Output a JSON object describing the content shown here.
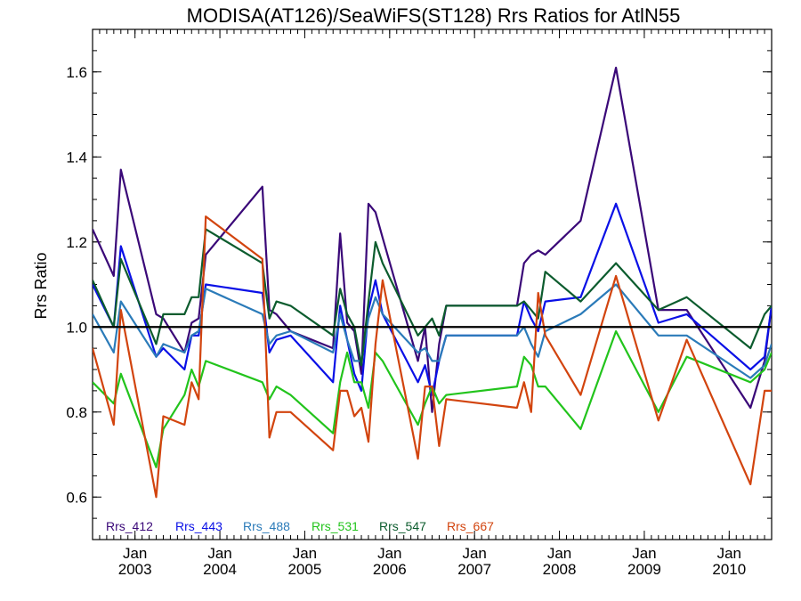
{
  "chart_data": {
    "type": "line",
    "title": "MODISA(AT126)/SeaWiFS(ST128)  Rrs Ratios for AtlN55",
    "xlabel": "",
    "ylabel": "Rrs Ratio",
    "xlim": [
      "2002-07",
      "2010-07"
    ],
    "ylim": [
      0.5,
      1.7
    ],
    "y_ticks": [
      "0.6",
      "0.8",
      "1.0",
      "1.2",
      "1.4",
      "1.6"
    ],
    "x_ticks": [
      {
        "month": "Jan",
        "year": "2003",
        "date": "2003-01"
      },
      {
        "month": "Jan",
        "year": "2004",
        "date": "2004-01"
      },
      {
        "month": "Jan",
        "year": "2005",
        "date": "2005-01"
      },
      {
        "month": "Jan",
        "year": "2006",
        "date": "2006-01"
      },
      {
        "month": "Jan",
        "year": "2007",
        "date": "2007-01"
      },
      {
        "month": "Jan",
        "year": "2008",
        "date": "2008-01"
      },
      {
        "month": "Jan",
        "year": "2009",
        "date": "2009-01"
      },
      {
        "month": "Jan",
        "year": "2010",
        "date": "2010-01"
      }
    ],
    "reference_line": {
      "y": 1.0,
      "color": "#000000"
    },
    "legend_position": "bottom-left",
    "grid": false,
    "x": [
      "2002-07",
      "2002-10",
      "2002-11",
      "2003-04",
      "2003-05",
      "2003-08",
      "2003-09",
      "2003-10",
      "2003-11",
      "2004-07",
      "2004-08",
      "2004-09",
      "2004-11",
      "2005-05",
      "2005-06",
      "2005-07",
      "2005-08",
      "2005-09",
      "2005-10",
      "2005-11",
      "2005-12",
      "2006-05",
      "2006-06",
      "2006-07",
      "2006-08",
      "2006-09",
      "2007-07",
      "2007-08",
      "2007-09",
      "2007-10",
      "2007-11",
      "2008-04",
      "2008-09",
      "2009-03",
      "2009-07",
      "2010-04",
      "2010-06",
      "2010-07"
    ],
    "series": [
      {
        "name": "Rrs_412",
        "color": "#3a0878",
        "values": [
          1.23,
          1.12,
          1.37,
          1.03,
          1.02,
          0.94,
          1.01,
          1.02,
          1.17,
          1.33,
          1.04,
          1.03,
          0.99,
          0.95,
          1.22,
          1.01,
          0.99,
          0.89,
          1.29,
          1.27,
          1.21,
          0.92,
          1.0,
          0.8,
          0.96,
          1.05,
          1.05,
          1.15,
          1.17,
          1.18,
          1.17,
          1.25,
          1.61,
          1.04,
          1.04,
          0.81,
          0.92,
          1.05
        ]
      },
      {
        "name": "Rrs_443",
        "color": "#0a10e6",
        "values": [
          1.1,
          1.0,
          1.19,
          0.93,
          0.95,
          0.9,
          0.98,
          0.98,
          1.1,
          1.08,
          0.94,
          0.97,
          0.98,
          0.87,
          1.05,
          0.97,
          0.89,
          0.85,
          1.04,
          1.11,
          1.03,
          0.87,
          0.91,
          0.84,
          0.92,
          0.98,
          0.98,
          1.06,
          1.02,
          0.99,
          1.06,
          1.07,
          1.29,
          1.01,
          1.03,
          0.9,
          0.93,
          1.05
        ]
      },
      {
        "name": "Rrs_488",
        "color": "#2b7bb9",
        "values": [
          1.03,
          0.94,
          1.06,
          0.93,
          0.96,
          0.94,
          0.98,
          0.99,
          1.09,
          1.03,
          0.96,
          0.98,
          0.99,
          0.94,
          1.03,
          0.97,
          0.92,
          0.92,
          1.02,
          1.07,
          1.03,
          0.94,
          0.95,
          0.92,
          0.92,
          0.98,
          0.98,
          1.0,
          0.96,
          0.93,
          0.99,
          1.03,
          1.1,
          0.98,
          0.98,
          0.88,
          0.91,
          0.96
        ]
      },
      {
        "name": "Rrs_531",
        "color": "#22c41c",
        "values": [
          0.87,
          0.82,
          0.89,
          0.67,
          0.76,
          0.84,
          0.9,
          0.86,
          0.92,
          0.87,
          0.83,
          0.86,
          0.84,
          0.75,
          0.87,
          0.94,
          0.87,
          0.87,
          0.81,
          0.94,
          0.92,
          0.77,
          0.82,
          0.86,
          0.82,
          0.84,
          0.86,
          0.93,
          0.91,
          0.86,
          0.86,
          0.76,
          0.99,
          0.8,
          0.93,
          0.87,
          0.9,
          0.94
        ]
      },
      {
        "name": "Rrs_547",
        "color": "#0c5c2e",
        "values": [
          1.11,
          1.0,
          1.16,
          0.96,
          1.03,
          1.03,
          1.07,
          1.07,
          1.23,
          1.15,
          1.02,
          1.06,
          1.05,
          0.98,
          1.09,
          1.03,
          1.0,
          0.91,
          1.06,
          1.2,
          1.15,
          0.98,
          1.0,
          1.02,
          0.98,
          1.05,
          1.05,
          1.06,
          1.04,
          1.02,
          1.13,
          1.06,
          1.15,
          1.04,
          1.07,
          0.95,
          1.03,
          1.05
        ]
      },
      {
        "name": "Rrs_667",
        "color": "#d2440e",
        "values": [
          0.95,
          0.77,
          1.04,
          0.6,
          0.79,
          0.77,
          0.87,
          0.83,
          1.26,
          1.16,
          0.74,
          0.8,
          0.8,
          0.71,
          0.85,
          0.85,
          0.79,
          0.81,
          0.73,
          0.96,
          1.11,
          0.69,
          0.86,
          0.86,
          0.72,
          0.83,
          0.81,
          0.87,
          0.8,
          1.08,
          0.98,
          0.84,
          1.12,
          0.78,
          0.97,
          0.63,
          0.85,
          0.85
        ]
      }
    ]
  }
}
